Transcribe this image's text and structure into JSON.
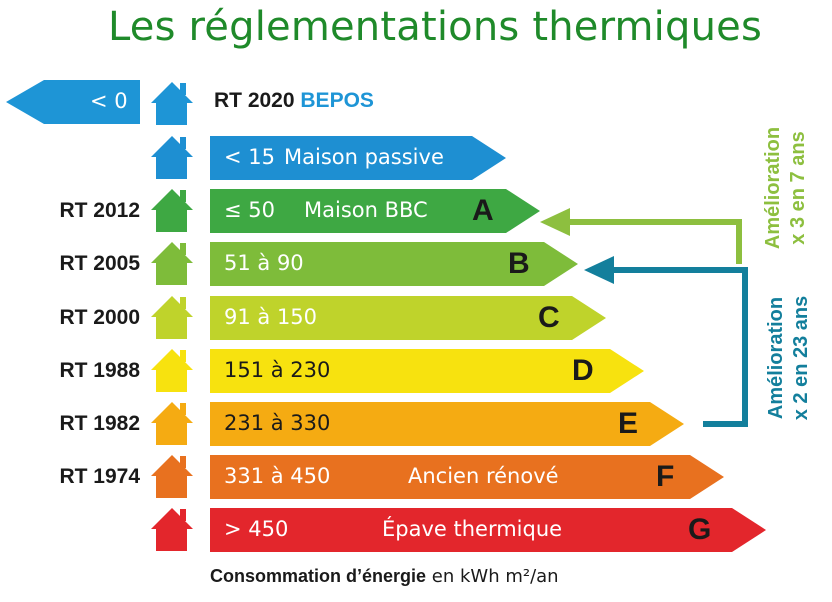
{
  "title": "Les réglementations thermiques",
  "top_row": {
    "zero_label": "< 0",
    "rt_name": "RT 2020",
    "rt_tag": "BEPOS",
    "arrow_color": "#1e95d6",
    "house_color": "#1e95d6"
  },
  "bars": [
    {
      "rt": "",
      "range": "< 15",
      "name": "Maison passive",
      "letter": "",
      "color": "#1e8fd2",
      "text_color": "#ffffff"
    },
    {
      "rt": "RT 2012",
      "range": "≤ 50",
      "name": "Maison BBC",
      "letter": "A",
      "color": "#3ea843",
      "text_color": "#ffffff"
    },
    {
      "rt": "RT 2005",
      "range": "51 à 90",
      "name": "",
      "letter": "B",
      "color": "#7ebc3a",
      "text_color": "#ffffff"
    },
    {
      "rt": "RT 2000",
      "range": "91 à 150",
      "name": "",
      "letter": "C",
      "color": "#bfd32b",
      "text_color": "#ffffff"
    },
    {
      "rt": "RT 1988",
      "range": "151 à 230",
      "name": "",
      "letter": "D",
      "color": "#f7e20f",
      "text_color": "#1a1a1a"
    },
    {
      "rt": "RT 1982",
      "range": "231 à 330",
      "name": "",
      "letter": "E",
      "color": "#f5ab12",
      "text_color": "#1a1a1a"
    },
    {
      "rt": "RT 1974",
      "range": "331 à 450",
      "name": "Ancien rénové",
      "letter": "F",
      "color": "#e8711f",
      "text_color": "#ffffff"
    },
    {
      "rt": "",
      "range": "> 450",
      "name": "Épave thermique",
      "letter": "G",
      "color": "#e3262c",
      "text_color": "#ffffff"
    }
  ],
  "improvements": [
    {
      "line1": "Amélioration",
      "line2": "x 3 en 7 ans",
      "color": "#8dbf3f"
    },
    {
      "line1": "Amélioration",
      "line2": "x 2 en 23 ans",
      "color": "#137f9c"
    }
  ],
  "footer": {
    "bold": "Consommation d’énergie",
    "unit": "en kWh m²/an"
  }
}
